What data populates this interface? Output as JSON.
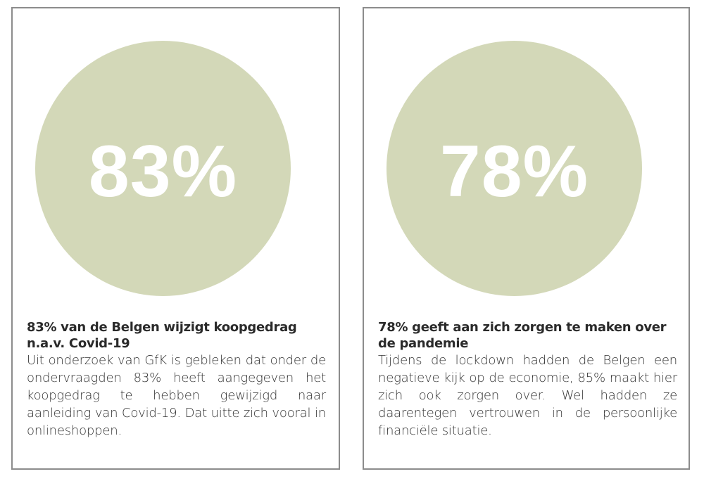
{
  "colors": {
    "circle_fill": "#d3d8b8",
    "percentage_text": "#ffffff",
    "border": "#8c8c8c",
    "body_text": "#333333"
  },
  "cards": [
    {
      "percentage": "83%",
      "headline_line1": "83% van de Belgen wijzigt koopgedrag",
      "headline_line2": "n.a.v. Covid-19",
      "body": "Uit onderzoek van GfK is gebleken dat onder de ondervraagden 83% heeft aangegeven het koopgedrag te hebben gewijzigd naar aanleiding van Covid-19. Dat uitte zich vooral in onlineshoppen."
    },
    {
      "percentage": "78%",
      "headline_line1": "78% geeft aan zich zorgen te maken over",
      "headline_line2": "de pandemie",
      "body": "Tijdens de lockdown hadden de Belgen een negatieve kijk op de economie, 85% maakt hier zich ook zorgen over. Wel hadden ze daarentegen vertrouwen in de persoonlijke financiële situatie."
    }
  ]
}
